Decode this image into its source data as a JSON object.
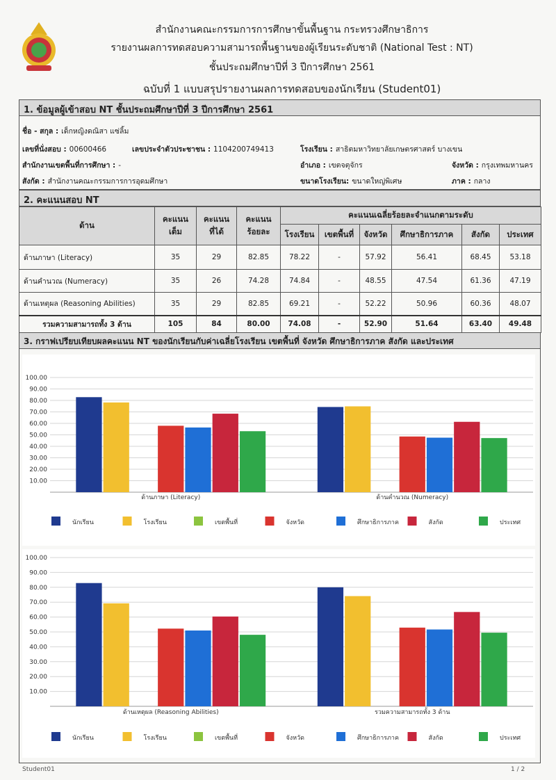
{
  "header": {
    "lines": [
      "สำนักงานคณะกรรมการการศึกษาขั้นพื้นฐาน กระทรวงศึกษาธิการ",
      "รายงานผลการทดสอบความสามารถพื้นฐานของผู้เรียนระดับชาติ (National Test : NT)",
      "ชั้นประถมศึกษาปีที่ 3  ปีการศึกษา 2561",
      "ฉบับที่ 1 แบบสรุปรายงานผลการทดสอบของนักเรียน (Student01)"
    ]
  },
  "section1": {
    "title": "1. ข้อมูลผู้เข้าสอบ NT ชั้นประถมศึกษาปีที่ 3 ปีการศึกษา 2561",
    "rows": [
      [
        {
          "label": "ชื่อ - สกุล :",
          "value": "เด็กหญิงดณิสา  แซ่ลิ้ม"
        }
      ],
      [
        {
          "label": "เลขที่นั่งสอบ :",
          "value": "00600466"
        },
        {
          "label": "เลขประจำตัวประชาชน :",
          "value": "1104200749413"
        },
        {
          "label": "โรงเรียน :",
          "value": "สาธิตมหาวิทยาลัยเกษตรศาสตร์ บางเขน"
        }
      ],
      [
        {
          "label": "สำนักงานเขตพื้นที่การศึกษา :",
          "value": "-"
        },
        {
          "label": "อำเภอ :",
          "value": "เขตจตุจักร"
        },
        {
          "label": "จังหวัด :",
          "value": "กรุงเทพมหานคร"
        }
      ],
      [
        {
          "label": "สังกัด :",
          "value": "สำนักงานคณะกรรมการการอุดมศึกษา"
        },
        {
          "label": "ขนาดโรงเรียน:",
          "value": "ขนาดใหญ่พิเศษ"
        },
        {
          "label": "ภาค :",
          "value": "กลาง"
        }
      ]
    ]
  },
  "section2": {
    "title": "2. คะแนนสอบ NT",
    "head_main": [
      [
        "ด้าน"
      ],
      [
        "คะแนน",
        "เต็ม"
      ],
      [
        "คะแนน",
        "ที่ได้"
      ],
      [
        "คะแนน",
        "ร้อยละ"
      ]
    ],
    "head_group": "คะแนนเฉลี่ยร้อยละจำแนกตามระดับ",
    "head_sub": [
      "โรงเรียน",
      "เขตพื้นที่",
      "จังหวัด",
      "ศึกษาธิการภาค",
      "สังกัด",
      "ประเทศ"
    ],
    "rows": [
      [
        "ด้านภาษา (Literacy)",
        "35",
        "29",
        "82.85",
        "78.22",
        "-",
        "57.92",
        "56.41",
        "68.45",
        "53.18"
      ],
      [
        "ด้านคำนวณ (Numeracy)",
        "35",
        "26",
        "74.28",
        "74.84",
        "-",
        "48.55",
        "47.54",
        "61.36",
        "47.19"
      ],
      [
        "ด้านเหตุผล (Reasoning Abilities)",
        "35",
        "29",
        "82.85",
        "69.21",
        "-",
        "52.22",
        "50.96",
        "60.36",
        "48.07"
      ],
      [
        "รวมความสามารถทั้ง 3 ด้าน",
        "105",
        "84",
        "80.00",
        "74.08",
        "-",
        "52.90",
        "51.64",
        "63.40",
        "49.48"
      ]
    ]
  },
  "section3": {
    "title": "3. กราฟเปรียบเทียบผลคะแนน NT ของนักเรียนกับค่าเฉลี่ยโรงเรียน เขตพื้นที่ จังหวัด ศึกษาธิการภาค สังกัด และประเทศ"
  },
  "chart_data": [
    {
      "type": "bar",
      "categories": [
        "ด้านภาษา (Literacy)",
        "ด้านคำนวณ (Numeracy)"
      ],
      "ylim": [
        0,
        100
      ],
      "yticks": [
        {
          "value": 10,
          "label": "10.00"
        },
        {
          "value": 20,
          "label": "20.00"
        },
        {
          "value": 30,
          "label": "30.00"
        },
        {
          "value": 40,
          "label": "40.00"
        },
        {
          "value": 50,
          "label": "50.00"
        },
        {
          "value": 60,
          "label": "60.00"
        },
        {
          "value": 70,
          "label": "70.00"
        },
        {
          "value": 80,
          "label": "80.00"
        },
        {
          "value": 90,
          "label": "90.00"
        },
        {
          "value": 100,
          "label": "100.00"
        }
      ],
      "grid": true,
      "series": [
        {
          "name": "นักเรียน",
          "color": "#1f3a8f",
          "values": [
            82.85,
            74.28
          ]
        },
        {
          "name": "โรงเรียน",
          "color": "#f2bf2f",
          "values": [
            78.22,
            74.84
          ]
        },
        {
          "name": "เขตพื้นที่",
          "color": "#8cc43f",
          "values": [
            null,
            null
          ]
        },
        {
          "name": "จังหวัด",
          "color": "#d9342f",
          "values": [
            57.92,
            48.55
          ]
        },
        {
          "name": "ศึกษาธิการภาค",
          "color": "#1f6fd6",
          "values": [
            56.41,
            47.54
          ]
        },
        {
          "name": "สังกัด",
          "color": "#c7263c",
          "values": [
            68.45,
            61.36
          ]
        },
        {
          "name": "ประเทศ",
          "color": "#2fa84a",
          "values": [
            53.18,
            47.19
          ]
        }
      ]
    },
    {
      "type": "bar",
      "categories": [
        "ด้านเหตุผล (Reasoning Abilities)",
        "รวมความสามารถทั้ง 3 ด้าน"
      ],
      "ylim": [
        0,
        100
      ],
      "yticks": [
        {
          "value": 10,
          "label": "10.00"
        },
        {
          "value": 20,
          "label": "20.00"
        },
        {
          "value": 30,
          "label": "30.00"
        },
        {
          "value": 40,
          "label": "40.00"
        },
        {
          "value": 50,
          "label": "50.00"
        },
        {
          "value": 60,
          "label": "60.00"
        },
        {
          "value": 70,
          "label": "70.00"
        },
        {
          "value": 80,
          "label": "80.00"
        },
        {
          "value": 90,
          "label": "90.00"
        },
        {
          "value": 100,
          "label": "100.00"
        }
      ],
      "grid": true,
      "series": [
        {
          "name": "นักเรียน",
          "color": "#1f3a8f",
          "values": [
            82.85,
            80.0
          ]
        },
        {
          "name": "โรงเรียน",
          "color": "#f2bf2f",
          "values": [
            69.21,
            74.08
          ]
        },
        {
          "name": "เขตพื้นที่",
          "color": "#8cc43f",
          "values": [
            null,
            null
          ]
        },
        {
          "name": "จังหวัด",
          "color": "#d9342f",
          "values": [
            52.22,
            52.9
          ]
        },
        {
          "name": "ศึกษาธิการภาค",
          "color": "#1f6fd6",
          "values": [
            50.96,
            51.64
          ]
        },
        {
          "name": "สังกัด",
          "color": "#c7263c",
          "values": [
            60.36,
            63.4
          ]
        },
        {
          "name": "ประเทศ",
          "color": "#2fa84a",
          "values": [
            48.07,
            49.48
          ]
        }
      ]
    }
  ],
  "footer": {
    "left": "Student01",
    "right": "1 / 2"
  }
}
